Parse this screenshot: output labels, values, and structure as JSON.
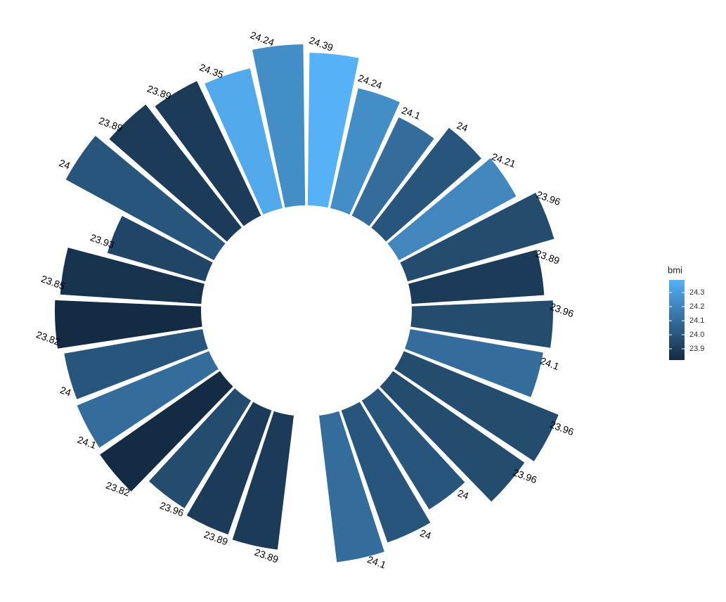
{
  "chart_data": {
    "type": "polar-bar",
    "values": [
      217,
      175,
      155,
      180,
      190,
      217,
      189,
      201,
      192,
      238,
      228,
      182,
      199,
      210,
      null,
      192,
      187,
      180,
      208,
      203,
      200,
      208,
      201,
      145,
      240,
      222,
      212,
      204,
      229
    ],
    "bmi": [
      24.39,
      24.24,
      24.1,
      24,
      24.21,
      23.96,
      23.89,
      23.96,
      24.1,
      23.96,
      23.96,
      24,
      24,
      24.1,
      null,
      23.89,
      23.89,
      23.96,
      23.82,
      24.1,
      24,
      23.82,
      23.85,
      23.93,
      24,
      23.89,
      23.89,
      24.35,
      24.24
    ],
    "ylim": [
      -150,
      240
    ],
    "legend": {
      "title": "bmi",
      "limits": [
        23.82,
        24.39
      ],
      "low": "#132B43",
      "high": "#56B1F7",
      "ticks": [
        23.9,
        {
          "value": 24,
          "label": "24.0"
        },
        24.1,
        24.2,
        24.3
      ]
    }
  }
}
